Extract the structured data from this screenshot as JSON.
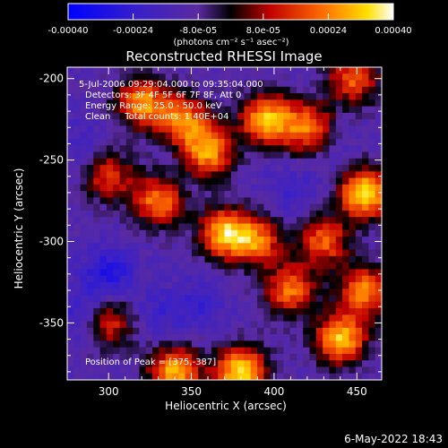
{
  "chart_data": {
    "type": "heatmap",
    "title": "Reconstructed RHESSI Image",
    "xlabel": "Heliocentric X (arcsec)",
    "ylabel": "Heliocentric Y (arcsec)",
    "xlim": [
      275,
      465
    ],
    "ylim": [
      -385,
      -193
    ],
    "x_ticks": [
      300,
      350,
      400,
      450
    ],
    "y_ticks": [
      -200,
      -250,
      -300,
      -350
    ],
    "colorbar": {
      "range": [
        -0.0004,
        0.0004
      ],
      "tick_labels": [
        "-0.00040",
        "-0.00024",
        "-8.0e-05",
        "8.0e-05",
        "0.00024",
        "0.00040"
      ],
      "unit_label": "(photons cm⁻² s⁻¹ asec⁻²)",
      "colormap": [
        "#0000ff",
        "#5a2aa0",
        "#000000",
        "#c00000",
        "#ff6a00",
        "#ffe000",
        "#ffffff"
      ]
    },
    "annotations": [
      "5-Jul-2006 09:29:04.000 to 09:35:04.000",
      "Detectors: 3F 4F 5F 6F 7F 8F, Att 0",
      "Energy Range: 25.0 - 50.0 keV",
      "Clean     Total counts: 1.40E+04"
    ],
    "peak_label": "Position of Peak = [375,-387]",
    "peak": [
      375,
      -387
    ],
    "hotspots": [
      {
        "x": 320,
        "y": -215,
        "v": 0.00026
      },
      {
        "x": 345,
        "y": -225,
        "v": 0.00022
      },
      {
        "x": 360,
        "y": -245,
        "v": 0.00028
      },
      {
        "x": 395,
        "y": -225,
        "v": 0.0003
      },
      {
        "x": 420,
        "y": -230,
        "v": 0.00022
      },
      {
        "x": 448,
        "y": -200,
        "v": 0.0002
      },
      {
        "x": 455,
        "y": -270,
        "v": 0.00038
      },
      {
        "x": 430,
        "y": -300,
        "v": 0.0002
      },
      {
        "x": 330,
        "y": -275,
        "v": 0.00024
      },
      {
        "x": 370,
        "y": -295,
        "v": 0.0003
      },
      {
        "x": 390,
        "y": -300,
        "v": 0.0002
      },
      {
        "x": 410,
        "y": -330,
        "v": 0.00022
      },
      {
        "x": 440,
        "y": -360,
        "v": 0.00032
      },
      {
        "x": 380,
        "y": -380,
        "v": 0.00036
      },
      {
        "x": 340,
        "y": -380,
        "v": 0.0003
      },
      {
        "x": 300,
        "y": -350,
        "v": 0.00016
      },
      {
        "x": 455,
        "y": -330,
        "v": 0.00024
      },
      {
        "x": 300,
        "y": -260,
        "v": 0.00014
      }
    ],
    "coldspots": [
      {
        "x": 300,
        "y": -320,
        "v": -0.0003
      },
      {
        "x": 285,
        "y": -345,
        "v": -0.00026
      },
      {
        "x": 330,
        "y": -345,
        "v": -0.0002
      },
      {
        "x": 355,
        "y": -340,
        "v": -0.00022
      },
      {
        "x": 285,
        "y": -240,
        "v": -0.00018
      },
      {
        "x": 410,
        "y": -270,
        "v": -0.0002
      },
      {
        "x": 440,
        "y": -250,
        "v": -0.00016
      },
      {
        "x": 340,
        "y": -255,
        "v": -0.00014
      }
    ]
  },
  "footer": {
    "timestamp": "6-May-2022 18:43"
  }
}
